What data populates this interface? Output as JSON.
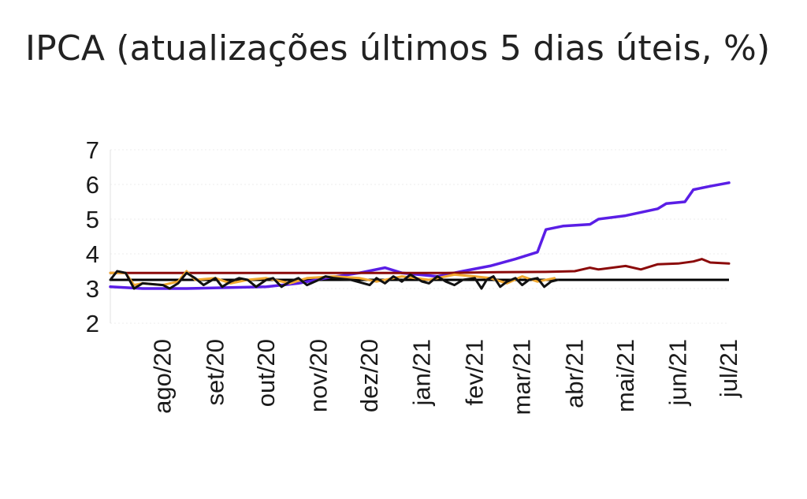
{
  "title": "IPCA (atualizações últimos 5 dias úteis, %)",
  "chart_data": {
    "type": "line",
    "title": "IPCA (atualizações últimos 5 dias úteis, %)",
    "x_range": [
      "2020-07-01",
      "2021-07-01"
    ],
    "x_ticks": [
      {
        "label": "ago/20",
        "date": "2020-08-01"
      },
      {
        "label": "set/20",
        "date": "2020-09-01"
      },
      {
        "label": "out/20",
        "date": "2020-10-01"
      },
      {
        "label": "nov/20",
        "date": "2020-11-01"
      },
      {
        "label": "dez/20",
        "date": "2020-12-01"
      },
      {
        "label": "jan/21",
        "date": "2021-01-01"
      },
      {
        "label": "fev/21",
        "date": "2021-02-01"
      },
      {
        "label": "mar/21",
        "date": "2021-03-01"
      },
      {
        "label": "abr/21",
        "date": "2021-04-01"
      },
      {
        "label": "mai/21",
        "date": "2021-05-01"
      },
      {
        "label": "jun/21",
        "date": "2021-06-01"
      },
      {
        "label": "jul/21",
        "date": "2021-07-01"
      }
    ],
    "ylim": [
      2,
      7
    ],
    "y_ticks": [
      2,
      3,
      4,
      5,
      6,
      7
    ],
    "grid": true,
    "target_line": {
      "value": 3.25,
      "color": "#000000"
    },
    "series": [
      {
        "color": "#5a1ee6",
        "points": [
          [
            "2020-07-01",
            3.05
          ],
          [
            "2020-07-20",
            3.0
          ],
          [
            "2020-08-15",
            3.0
          ],
          [
            "2020-09-10",
            3.03
          ],
          [
            "2020-10-01",
            3.05
          ],
          [
            "2020-10-20",
            3.15
          ],
          [
            "2020-11-05",
            3.3
          ],
          [
            "2020-11-25",
            3.45
          ],
          [
            "2020-12-10",
            3.6
          ],
          [
            "2020-12-20",
            3.45
          ],
          [
            "2021-01-10",
            3.35
          ],
          [
            "2021-01-25",
            3.5
          ],
          [
            "2021-02-10",
            3.65
          ],
          [
            "2021-02-25",
            3.85
          ],
          [
            "2021-03-10",
            4.05
          ],
          [
            "2021-03-15",
            4.7
          ],
          [
            "2021-03-25",
            4.8
          ],
          [
            "2021-04-10",
            4.85
          ],
          [
            "2021-04-15",
            5.0
          ],
          [
            "2021-05-01",
            5.1
          ],
          [
            "2021-05-20",
            5.3
          ],
          [
            "2021-05-25",
            5.45
          ],
          [
            "2021-06-05",
            5.5
          ],
          [
            "2021-06-10",
            5.85
          ],
          [
            "2021-06-20",
            5.95
          ],
          [
            "2021-07-01",
            6.05
          ]
        ]
      },
      {
        "color": "#8b0a0a",
        "points": [
          [
            "2020-07-01",
            3.45
          ],
          [
            "2020-08-15",
            3.45
          ],
          [
            "2020-09-15",
            3.45
          ],
          [
            "2020-10-15",
            3.45
          ],
          [
            "2020-11-15",
            3.45
          ],
          [
            "2020-12-15",
            3.45
          ],
          [
            "2021-01-15",
            3.45
          ],
          [
            "2021-02-15",
            3.47
          ],
          [
            "2021-03-15",
            3.48
          ],
          [
            "2021-04-01",
            3.5
          ],
          [
            "2021-04-10",
            3.6
          ],
          [
            "2021-04-15",
            3.55
          ],
          [
            "2021-05-01",
            3.65
          ],
          [
            "2021-05-10",
            3.55
          ],
          [
            "2021-05-20",
            3.7
          ],
          [
            "2021-06-01",
            3.72
          ],
          [
            "2021-06-10",
            3.78
          ],
          [
            "2021-06-15",
            3.85
          ],
          [
            "2021-06-20",
            3.75
          ],
          [
            "2021-07-01",
            3.72
          ]
        ]
      },
      {
        "color": "#f0a830",
        "points": [
          [
            "2020-07-01",
            3.45
          ],
          [
            "2020-07-10",
            3.45
          ],
          [
            "2020-07-15",
            3.1
          ],
          [
            "2020-07-20",
            3.15
          ],
          [
            "2020-08-01",
            3.1
          ],
          [
            "2020-08-10",
            3.2
          ],
          [
            "2020-08-15",
            3.5
          ],
          [
            "2020-08-20",
            3.25
          ],
          [
            "2020-09-01",
            3.3
          ],
          [
            "2020-09-10",
            3.15
          ],
          [
            "2020-09-20",
            3.25
          ],
          [
            "2020-10-01",
            3.3
          ],
          [
            "2020-10-15",
            3.15
          ],
          [
            "2020-10-25",
            3.3
          ],
          [
            "2020-11-10",
            3.35
          ],
          [
            "2020-11-25",
            3.3
          ],
          [
            "2020-12-05",
            3.2
          ],
          [
            "2020-12-20",
            3.35
          ],
          [
            "2021-01-05",
            3.25
          ],
          [
            "2021-01-20",
            3.4
          ],
          [
            "2021-02-01",
            3.35
          ],
          [
            "2021-02-10",
            3.3
          ],
          [
            "2021-02-20",
            3.15
          ],
          [
            "2021-03-01",
            3.35
          ],
          [
            "2021-03-10",
            3.2
          ],
          [
            "2021-03-20",
            3.3
          ]
        ]
      },
      {
        "color": "#111111",
        "points": [
          [
            "2020-07-01",
            3.25
          ],
          [
            "2020-07-05",
            3.5
          ],
          [
            "2020-07-10",
            3.45
          ],
          [
            "2020-07-15",
            3.0
          ],
          [
            "2020-07-20",
            3.15
          ],
          [
            "2020-08-01",
            3.1
          ],
          [
            "2020-08-05",
            3.0
          ],
          [
            "2020-08-10",
            3.15
          ],
          [
            "2020-08-15",
            3.45
          ],
          [
            "2020-08-20",
            3.3
          ],
          [
            "2020-08-25",
            3.1
          ],
          [
            "2020-09-01",
            3.3
          ],
          [
            "2020-09-05",
            3.05
          ],
          [
            "2020-09-10",
            3.2
          ],
          [
            "2020-09-15",
            3.3
          ],
          [
            "2020-09-20",
            3.25
          ],
          [
            "2020-09-25",
            3.05
          ],
          [
            "2020-10-01",
            3.25
          ],
          [
            "2020-10-05",
            3.3
          ],
          [
            "2020-10-10",
            3.05
          ],
          [
            "2020-10-15",
            3.2
          ],
          [
            "2020-10-20",
            3.3
          ],
          [
            "2020-10-25",
            3.1
          ],
          [
            "2020-11-01",
            3.25
          ],
          [
            "2020-11-05",
            3.35
          ],
          [
            "2020-11-10",
            3.3
          ],
          [
            "2020-11-20",
            3.25
          ],
          [
            "2020-12-01",
            3.1
          ],
          [
            "2020-12-05",
            3.3
          ],
          [
            "2020-12-10",
            3.15
          ],
          [
            "2020-12-15",
            3.35
          ],
          [
            "2020-12-20",
            3.2
          ],
          [
            "2020-12-25",
            3.4
          ],
          [
            "2021-01-01",
            3.2
          ],
          [
            "2021-01-05",
            3.15
          ],
          [
            "2021-01-10",
            3.35
          ],
          [
            "2021-01-15",
            3.2
          ],
          [
            "2021-01-20",
            3.1
          ],
          [
            "2021-01-25",
            3.25
          ],
          [
            "2021-02-01",
            3.3
          ],
          [
            "2021-02-05",
            3.0
          ],
          [
            "2021-02-08",
            3.25
          ],
          [
            "2021-02-12",
            3.35
          ],
          [
            "2021-02-16",
            3.05
          ],
          [
            "2021-02-20",
            3.2
          ],
          [
            "2021-02-25",
            3.3
          ],
          [
            "2021-03-01",
            3.1
          ],
          [
            "2021-03-05",
            3.25
          ],
          [
            "2021-03-10",
            3.3
          ],
          [
            "2021-03-14",
            3.05
          ],
          [
            "2021-03-18",
            3.2
          ],
          [
            "2021-03-22",
            3.25
          ]
        ]
      }
    ]
  }
}
